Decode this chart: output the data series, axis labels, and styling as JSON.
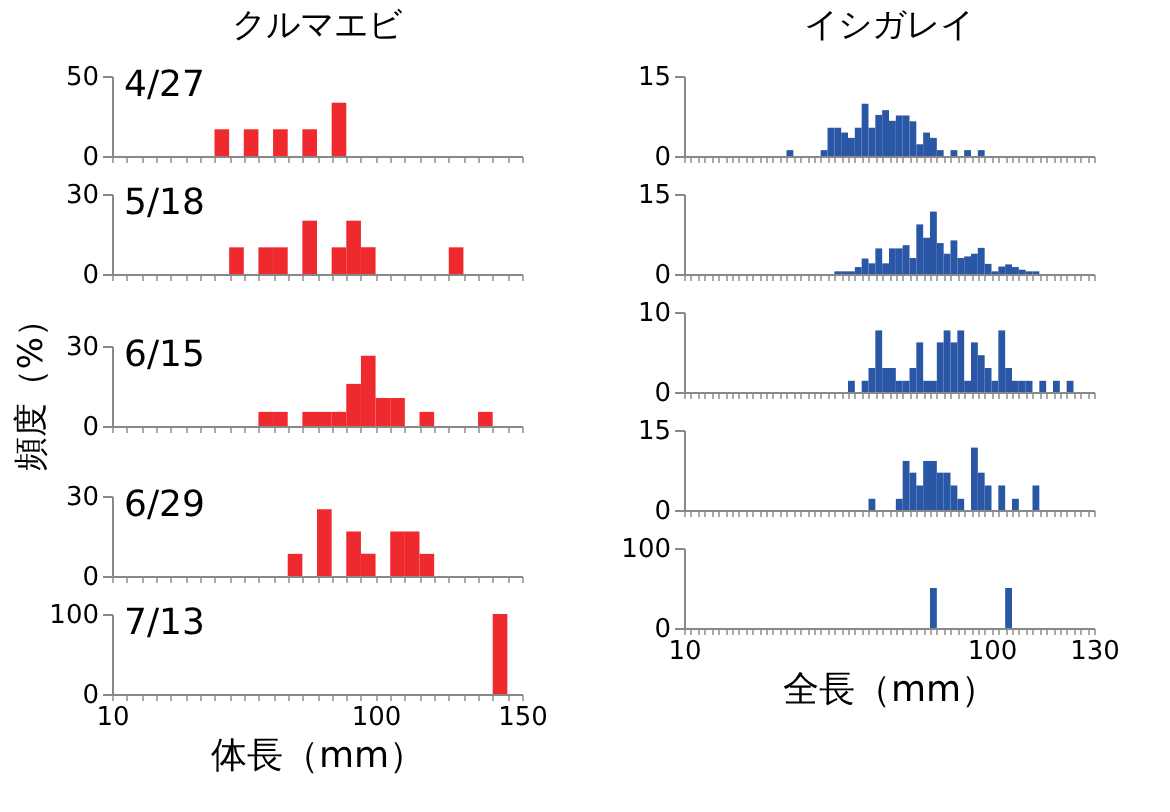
{
  "chart_data": [
    {
      "type": "histogram",
      "title": "クルマエビ",
      "annotations": [
        "4/27"
      ],
      "color": "#ee2a2e",
      "bins": [
        10,
        15,
        20,
        25,
        30,
        35,
        40,
        45,
        50,
        55,
        60,
        65,
        70,
        75,
        80,
        85,
        90,
        95,
        100,
        105,
        110,
        115,
        120,
        125,
        130,
        135,
        140,
        145,
        150
      ],
      "values": [
        0,
        0,
        0,
        0,
        0,
        0,
        0,
        16.7,
        0,
        16.7,
        0,
        16.7,
        0,
        16.7,
        0,
        33.3,
        0,
        0,
        0,
        0,
        0,
        0,
        0,
        0,
        0,
        0,
        0,
        0
      ],
      "xlim": [
        10,
        150
      ],
      "xticks": [
        10,
        100,
        150
      ],
      "ylim": [
        0,
        50
      ],
      "yticks": [
        0,
        50
      ],
      "tick_labels": "y",
      "grid": false
    },
    {
      "type": "histogram",
      "annotations": [
        "5/18"
      ],
      "color": "#ee2a2e",
      "bins": [
        10,
        15,
        20,
        25,
        30,
        35,
        40,
        45,
        50,
        55,
        60,
        65,
        70,
        75,
        80,
        85,
        90,
        95,
        100,
        105,
        110,
        115,
        120,
        125,
        130,
        135,
        140,
        145,
        150
      ],
      "values": [
        0,
        0,
        0,
        0,
        0,
        0,
        0,
        0,
        10,
        0,
        10,
        10,
        0,
        20,
        0,
        10,
        20,
        10,
        0,
        0,
        0,
        0,
        0,
        10,
        0,
        0,
        0,
        0
      ],
      "xlim": [
        10,
        150
      ],
      "xticks": [
        10,
        100,
        150
      ],
      "ylim": [
        0,
        30
      ],
      "yticks": [
        0,
        30
      ],
      "tick_labels": "y",
      "grid": false
    },
    {
      "type": "histogram",
      "ylabel": "頻度（%）",
      "annotations": [
        "6/15"
      ],
      "color": "#ee2a2e",
      "bins": [
        10,
        15,
        20,
        25,
        30,
        35,
        40,
        45,
        50,
        55,
        60,
        65,
        70,
        75,
        80,
        85,
        90,
        95,
        100,
        105,
        110,
        115,
        120,
        125,
        130,
        135,
        140,
        145,
        150
      ],
      "values": [
        0,
        0,
        0,
        0,
        0,
        0,
        0,
        0,
        0,
        0,
        5.3,
        5.3,
        0,
        5.3,
        5.3,
        5.3,
        15.8,
        26.3,
        10.5,
        10.5,
        0,
        5.3,
        0,
        0,
        0,
        5.3,
        0,
        0
      ],
      "xlim": [
        10,
        150
      ],
      "xticks": [
        10,
        100,
        150
      ],
      "ylim": [
        0,
        30
      ],
      "yticks": [
        0,
        30
      ],
      "tick_labels": "y",
      "grid": false
    },
    {
      "type": "histogram",
      "annotations": [
        "6/29"
      ],
      "color": "#ee2a2e",
      "bins": [
        10,
        15,
        20,
        25,
        30,
        35,
        40,
        45,
        50,
        55,
        60,
        65,
        70,
        75,
        80,
        85,
        90,
        95,
        100,
        105,
        110,
        115,
        120,
        125,
        130,
        135,
        140,
        145,
        150
      ],
      "values": [
        0,
        0,
        0,
        0,
        0,
        0,
        0,
        0,
        0,
        0,
        0,
        0,
        8.3,
        0,
        25,
        0,
        16.7,
        8.3,
        0,
        16.7,
        16.7,
        8.3,
        0,
        0,
        0,
        0,
        0,
        0
      ],
      "xlim": [
        10,
        150
      ],
      "xticks": [
        10,
        100,
        150
      ],
      "ylim": [
        0,
        30
      ],
      "yticks": [
        0,
        30
      ],
      "tick_labels": "y",
      "grid": false
    },
    {
      "type": "histogram",
      "xlabel": "体長（mm）",
      "annotations": [
        "7/13"
      ],
      "color": "#ee2a2e",
      "bins": [
        10,
        15,
        20,
        25,
        30,
        35,
        40,
        45,
        50,
        55,
        60,
        65,
        70,
        75,
        80,
        85,
        90,
        95,
        100,
        105,
        110,
        115,
        120,
        125,
        130,
        135,
        140,
        145,
        150
      ],
      "values": [
        0,
        0,
        0,
        0,
        0,
        0,
        0,
        0,
        0,
        0,
        0,
        0,
        0,
        0,
        0,
        0,
        0,
        0,
        0,
        0,
        0,
        0,
        0,
        0,
        0,
        0,
        100,
        0
      ],
      "xlim": [
        10,
        150
      ],
      "xticks": [
        10,
        100,
        150
      ],
      "ylim": [
        0,
        100
      ],
      "yticks": [
        0,
        100
      ],
      "grid": false
    },
    {
      "type": "histogram",
      "title": "イシガレイ",
      "color": "#2a56a6",
      "bins": [
        10,
        12,
        14,
        16,
        18,
        20,
        22,
        24,
        26,
        28,
        30,
        32,
        34,
        36,
        38,
        40,
        42,
        44,
        46,
        48,
        50,
        52,
        54,
        56,
        58,
        60,
        62,
        64,
        66,
        68,
        70,
        72,
        74,
        76,
        78,
        80,
        82,
        84,
        86,
        88,
        90,
        92,
        94,
        96,
        98,
        100,
        102,
        104,
        106,
        108,
        110,
        112,
        114,
        116,
        118,
        120,
        122,
        124,
        126,
        128,
        130
      ],
      "values": [
        0,
        0,
        0,
        0,
        0,
        0,
        0,
        0,
        0,
        0,
        0,
        0,
        0,
        0,
        0,
        1.1,
        0,
        0,
        0,
        0,
        1.1,
        5.3,
        5.3,
        4.4,
        3.4,
        5.3,
        9.8,
        5.3,
        7.7,
        8.6,
        6.6,
        7.6,
        7.6,
        6.5,
        2.2,
        4.4,
        3.4,
        1.1,
        0,
        1.1,
        0,
        1.1,
        0,
        1.1,
        0,
        0,
        0,
        0,
        0,
        0,
        0,
        0,
        0,
        0,
        0,
        0,
        0,
        0,
        0,
        0
      ],
      "xlim": [
        10,
        130
      ],
      "xticks": [
        10,
        100,
        130
      ],
      "ylim": [
        0,
        15
      ],
      "yticks": [
        0,
        15
      ],
      "tick_labels": "y",
      "grid": false
    },
    {
      "type": "histogram",
      "color": "#2a56a6",
      "bins": [
        10,
        12,
        14,
        16,
        18,
        20,
        22,
        24,
        26,
        28,
        30,
        32,
        34,
        36,
        38,
        40,
        42,
        44,
        46,
        48,
        50,
        52,
        54,
        56,
        58,
        60,
        62,
        64,
        66,
        68,
        70,
        72,
        74,
        76,
        78,
        80,
        82,
        84,
        86,
        88,
        90,
        92,
        94,
        96,
        98,
        100,
        102,
        104,
        106,
        108,
        110,
        112,
        114,
        116,
        118,
        120,
        122,
        124,
        126,
        128,
        130
      ],
      "values": [
        0,
        0,
        0,
        0,
        0,
        0,
        0,
        0,
        0,
        0,
        0,
        0,
        0,
        0,
        0,
        0,
        0,
        0,
        0,
        0,
        0,
        0,
        0.5,
        0.5,
        0.5,
        1.3,
        2.9,
        2,
        4.8,
        2,
        4.8,
        4.8,
        5.4,
        3,
        9.3,
        6.8,
        11.7,
        5.8,
        3.8,
        6.3,
        3,
        3.3,
        3.8,
        4.9,
        1.9,
        0.5,
        1.4,
        1.8,
        1.3,
        0.8,
        0.5,
        0.5,
        0,
        0,
        0,
        0,
        0,
        0,
        0,
        0
      ],
      "xlim": [
        10,
        130
      ],
      "xticks": [
        10,
        100,
        130
      ],
      "ylim": [
        0,
        15
      ],
      "yticks": [
        0,
        15
      ],
      "tick_labels": "y",
      "grid": false
    },
    {
      "type": "histogram",
      "color": "#2a56a6",
      "bins": [
        10,
        12,
        14,
        16,
        18,
        20,
        22,
        24,
        26,
        28,
        30,
        32,
        34,
        36,
        38,
        40,
        42,
        44,
        46,
        48,
        50,
        52,
        54,
        56,
        58,
        60,
        62,
        64,
        66,
        68,
        70,
        72,
        74,
        76,
        78,
        80,
        82,
        84,
        86,
        88,
        90,
        92,
        94,
        96,
        98,
        100,
        102,
        104,
        106,
        108,
        110,
        112,
        114,
        116,
        118,
        120,
        122,
        124,
        126,
        128,
        130
      ],
      "values": [
        0,
        0,
        0,
        0,
        0,
        0,
        0,
        0,
        0,
        0,
        0,
        0,
        0,
        0,
        0,
        0,
        0,
        0,
        0,
        0,
        0,
        0,
        0,
        0,
        1.4,
        0,
        1.4,
        3,
        7.7,
        3,
        3,
        1.4,
        1.4,
        3,
        6.2,
        1.4,
        1.4,
        6.2,
        7.7,
        6.2,
        7.7,
        1.4,
        6.2,
        4.6,
        3,
        1.4,
        7.7,
        3,
        1.4,
        1.4,
        1.4,
        0,
        1.4,
        0,
        1.4,
        0,
        1.4,
        0,
        0,
        0
      ],
      "xlim": [
        10,
        130
      ],
      "xticks": [
        10,
        100,
        130
      ],
      "ylim": [
        0,
        10
      ],
      "yticks": [
        0,
        10
      ],
      "tick_labels": "y",
      "grid": false
    },
    {
      "type": "histogram",
      "color": "#2a56a6",
      "bins": [
        10,
        12,
        14,
        16,
        18,
        20,
        22,
        24,
        26,
        28,
        30,
        32,
        34,
        36,
        38,
        40,
        42,
        44,
        46,
        48,
        50,
        52,
        54,
        56,
        58,
        60,
        62,
        64,
        66,
        68,
        70,
        72,
        74,
        76,
        78,
        80,
        82,
        84,
        86,
        88,
        90,
        92,
        94,
        96,
        98,
        100,
        102,
        104,
        106,
        108,
        110,
        112,
        114,
        116,
        118,
        120,
        122,
        124,
        126,
        128,
        130
      ],
      "values": [
        0,
        0,
        0,
        0,
        0,
        0,
        0,
        0,
        0,
        0,
        0,
        0,
        0,
        0,
        0,
        0,
        0,
        0,
        0,
        0,
        0,
        0,
        0,
        0,
        0,
        0,
        0,
        2.1,
        0,
        0,
        0,
        2.1,
        9.2,
        7,
        4.6,
        9.2,
        9.2,
        7,
        7,
        4.6,
        2.1,
        0,
        11.7,
        7,
        4.6,
        0,
        4.6,
        0,
        2.1,
        0,
        0,
        4.6,
        0,
        0,
        0,
        0,
        0,
        0,
        0,
        0
      ],
      "xlim": [
        10,
        130
      ],
      "xticks": [
        10,
        100,
        130
      ],
      "ylim": [
        0,
        15
      ],
      "yticks": [
        0,
        15
      ],
      "tick_labels": "y",
      "grid": false
    },
    {
      "type": "histogram",
      "xlabel": "全長（mm）",
      "color": "#2a56a6",
      "bins": [
        10,
        12,
        14,
        16,
        18,
        20,
        22,
        24,
        26,
        28,
        30,
        32,
        34,
        36,
        38,
        40,
        42,
        44,
        46,
        48,
        50,
        52,
        54,
        56,
        58,
        60,
        62,
        64,
        66,
        68,
        70,
        72,
        74,
        76,
        78,
        80,
        82,
        84,
        86,
        88,
        90,
        92,
        94,
        96,
        98,
        100,
        102,
        104,
        106,
        108,
        110,
        112,
        114,
        116,
        118,
        120,
        122,
        124,
        126,
        128,
        130
      ],
      "values": [
        0,
        0,
        0,
        0,
        0,
        0,
        0,
        0,
        0,
        0,
        0,
        0,
        0,
        0,
        0,
        0,
        0,
        0,
        0,
        0,
        0,
        0,
        0,
        0,
        0,
        0,
        0,
        0,
        0,
        0,
        0,
        0,
        0,
        0,
        0,
        0,
        50,
        0,
        0,
        0,
        0,
        0,
        0,
        0,
        0,
        0,
        0,
        50,
        0,
        0,
        0,
        0,
        0,
        0,
        0,
        0,
        0,
        0,
        0,
        0
      ],
      "xlim": [
        10,
        130
      ],
      "xticks": [
        10,
        100,
        130
      ],
      "ylim": [
        0,
        100
      ],
      "yticks": [
        0,
        100
      ],
      "grid": false
    }
  ]
}
